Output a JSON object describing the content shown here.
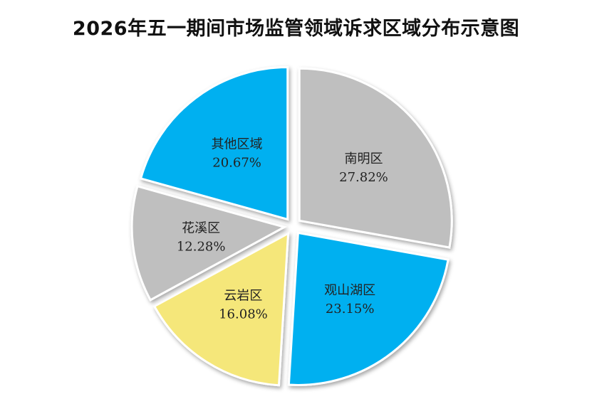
{
  "chart_data": {
    "type": "pie",
    "title": "2026年五一期间市场监管领域诉求区域分布示意图",
    "slices": [
      {
        "name": "南明区",
        "value": 27.82,
        "label": "27.82%",
        "color": "#BFBFBF"
      },
      {
        "name": "观山湖区",
        "value": 23.15,
        "label": "23.15%",
        "color": "#00B0F0"
      },
      {
        "name": "云岩区",
        "value": 16.08,
        "label": "16.08%",
        "color": "#F5E77A"
      },
      {
        "name": "花溪区",
        "value": 12.28,
        "label": "12.28%",
        "color": "#BFBFBF"
      },
      {
        "name": "其他区域",
        "value": 20.67,
        "label": "20.67%",
        "color": "#00B0F0"
      }
    ],
    "start_angle_deg": 0,
    "direction": "clockwise",
    "exploded": true,
    "legend": "none",
    "edge_color": "#FFFFFF"
  }
}
